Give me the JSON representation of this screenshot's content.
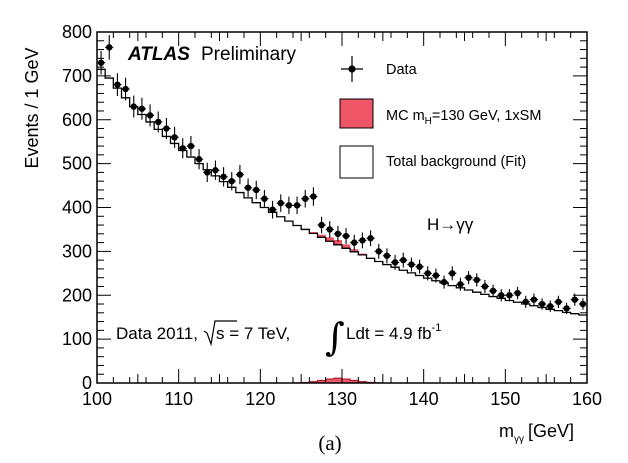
{
  "chart_data": {
    "type": "scatter",
    "title": "",
    "xlabel": "m",
    "xlabel_sub": "γγ",
    "xlabel_unit": "[GeV]",
    "ylabel": "Events / 1 GeV",
    "xlim": [
      100,
      160
    ],
    "ylim": [
      0,
      800
    ],
    "x_ticks": [
      100,
      110,
      120,
      130,
      140,
      150,
      160
    ],
    "x_tick_labels": [
      "100",
      "110",
      "120",
      "130",
      "140",
      "150",
      "160"
    ],
    "y_ticks": [
      0,
      100,
      200,
      300,
      400,
      500,
      600,
      700,
      800
    ],
    "y_tick_labels": [
      "0",
      "100",
      "200",
      "300",
      "400",
      "500",
      "600",
      "700",
      "800"
    ],
    "grid": false,
    "legend_position": "top-right",
    "experiment_label": "ATLAS",
    "experiment_tag": "Preliminary",
    "channel_label": "H→γγ",
    "run_label_prefix": "Data 2011,",
    "run_label_energy": "s = 7 TeV,",
    "run_label_lumi": "Ldt = 4.9 fb",
    "run_label_lumi_exp": "-1",
    "caption": "(a)",
    "legend": [
      {
        "name": "Data",
        "style": "marker"
      },
      {
        "name_prefix": "MC m",
        "name_sub": "H",
        "name_suffix": "=130 GeV, 1xSM",
        "style": "red-box"
      },
      {
        "name": "Total background (Fit)",
        "style": "white-box"
      }
    ],
    "colors": {
      "signal_fill": "#ee5566",
      "signal_edge": "#aa1122",
      "data": "#000000",
      "background_line": "#000000"
    },
    "series": [
      {
        "style": "points-with-errorbars",
        "x": [
          100.5,
          101.5,
          102.5,
          103.5,
          104.5,
          105.5,
          106.5,
          107.5,
          108.5,
          109.5,
          110.5,
          111.5,
          112.5,
          113.5,
          114.5,
          115.5,
          116.5,
          117.5,
          118.5,
          119.5,
          120.5,
          121.5,
          122.5,
          123.5,
          124.5,
          125.5,
          126.5,
          127.5,
          128.5,
          129.5,
          130.5,
          131.5,
          132.5,
          133.5,
          134.5,
          135.5,
          136.5,
          137.5,
          138.5,
          139.5,
          140.5,
          141.5,
          142.5,
          143.5,
          144.5,
          145.5,
          146.5,
          147.5,
          148.5,
          149.5,
          150.5,
          151.5,
          152.5,
          153.5,
          154.5,
          155.5,
          156.5,
          157.5,
          158.5,
          159.5
        ],
        "y": [
          730,
          765,
          680,
          670,
          630,
          625,
          610,
          595,
          580,
          560,
          535,
          540,
          510,
          480,
          485,
          470,
          460,
          475,
          445,
          440,
          420,
          395,
          410,
          405,
          405,
          420,
          425,
          360,
          350,
          340,
          335,
          320,
          325,
          330,
          300,
          290,
          275,
          280,
          270,
          265,
          250,
          245,
          230,
          250,
          225,
          240,
          235,
          220,
          210,
          200,
          200,
          205,
          185,
          190,
          180,
          175,
          185,
          170,
          190,
          180
        ],
        "yerr": [
          27,
          28,
          26,
          26,
          25,
          25,
          25,
          24,
          24,
          24,
          23,
          23,
          23,
          22,
          22,
          22,
          21,
          22,
          21,
          21,
          20,
          20,
          20,
          20,
          20,
          20,
          21,
          19,
          19,
          18,
          18,
          18,
          18,
          18,
          17,
          17,
          17,
          17,
          16,
          16,
          16,
          16,
          15,
          16,
          15,
          15,
          15,
          15,
          14,
          14,
          14,
          14,
          14,
          14,
          13,
          13,
          14,
          13,
          14,
          13
        ]
      },
      {
        "style": "step-histogram",
        "x": [
          100.5,
          101.5,
          102.5,
          103.5,
          104.5,
          105.5,
          106.5,
          107.5,
          108.5,
          109.5,
          110.5,
          111.5,
          112.5,
          113.5,
          114.5,
          115.5,
          116.5,
          117.5,
          118.5,
          119.5,
          120.5,
          121.5,
          122.5,
          123.5,
          124.5,
          125.5,
          126.5,
          127.5,
          128.5,
          129.5,
          130.5,
          131.5,
          132.5,
          133.5,
          134.5,
          135.5,
          136.5,
          137.5,
          138.5,
          139.5,
          140.5,
          141.5,
          142.5,
          143.5,
          144.5,
          145.5,
          146.5,
          147.5,
          148.5,
          149.5,
          150.5,
          151.5,
          152.5,
          153.5,
          154.5,
          155.5,
          156.5,
          157.5,
          158.5,
          159.5
        ],
        "y": [
          715,
          695,
          672,
          650,
          630,
          612,
          595,
          578,
          562,
          546,
          530,
          515,
          500,
          486,
          472,
          459,
          446,
          434,
          422,
          411,
          400,
          389,
          379,
          369,
          359,
          350,
          341,
          332,
          323,
          315,
          307,
          299,
          292,
          284,
          277,
          270,
          264,
          257,
          251,
          245,
          239,
          233,
          228,
          222,
          217,
          212,
          207,
          202,
          197,
          193,
          188,
          184,
          180,
          176,
          172,
          168,
          165,
          161,
          158,
          155
        ]
      },
      {
        "style": "signal-bins",
        "x": [
          124.5,
          125.5,
          126.5,
          127.5,
          128.5,
          129.5,
          130.5,
          131.5,
          132.5,
          133.5,
          134.5
        ],
        "y": [
          0.5,
          1.5,
          3,
          6,
          9,
          11,
          9,
          6,
          3,
          1.5,
          0.5
        ]
      }
    ]
  }
}
